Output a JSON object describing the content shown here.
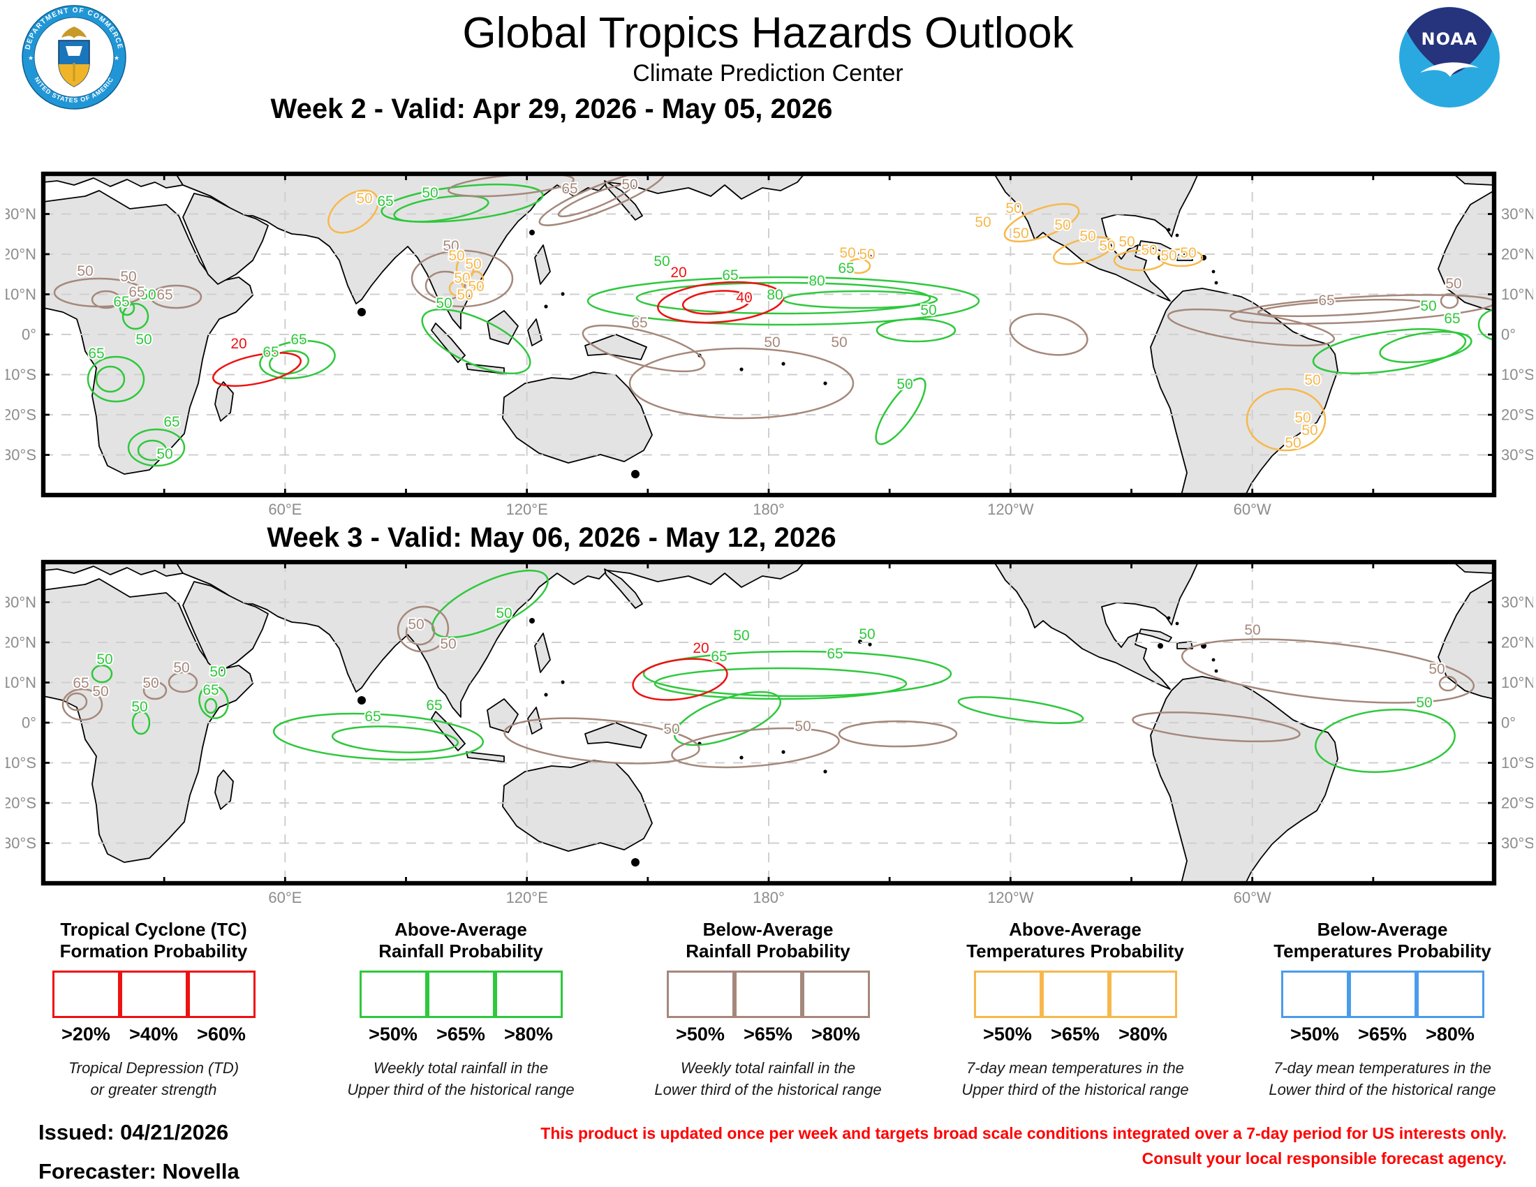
{
  "palette": {
    "green": "#2ec83c",
    "brown": "#a5887b",
    "red": "#ee1111",
    "orange": "#f7b84b",
    "blue": "#4a9ceb",
    "grid": "#cfcfcf",
    "axis_text": "#8c8c8c",
    "land": "#e3e3e3",
    "land_border": "#000000",
    "noaa_dark": "#26337d",
    "noaa_light": "#2aa9e0",
    "seal_ring": "#2196d6",
    "disclaimer_red": "#ff0000"
  },
  "header": {
    "title": "Global Tropics Hazards Outlook",
    "subtitle": "Climate Prediction Center",
    "seal_top_text": "DEPARTMENT OF COMMERCE",
    "seal_bottom_text": "UNITED STATES OF AMERICA",
    "noaa_text": "NOAA"
  },
  "maps": [
    {
      "title": "Week 2 - Valid: Apr 29, 2026 - May 05, 2026",
      "lat_labels": [
        "30°N",
        "20°N",
        "10°N",
        "0°",
        "10°S",
        "20°S",
        "30°S"
      ],
      "lon_labels": [
        "60°E",
        "120°E",
        "180°",
        "120°W",
        "60°W"
      ],
      "contours": [
        [
          "green",
          52,
          147,
          20,
          16,
          0
        ],
        [
          "green",
          48,
          147,
          10,
          9,
          0
        ],
        [
          "green",
          81,
          196,
          20,
          13,
          0
        ],
        [
          "green",
          78,
          198,
          10,
          7,
          0
        ],
        [
          "green",
          66,
          102,
          9,
          9,
          0
        ],
        [
          "green",
          60,
          96,
          5,
          5,
          0
        ],
        [
          "green",
          182,
          133,
          27,
          13,
          -8
        ],
        [
          "green",
          176,
          135,
          14,
          8,
          -8
        ],
        [
          "green",
          310,
          120,
          42,
          16,
          25
        ],
        [
          "green",
          300,
          21,
          58,
          12,
          -6
        ],
        [
          "green",
          285,
          25,
          34,
          8,
          -8
        ],
        [
          "green",
          530,
          91,
          140,
          17,
          0
        ],
        [
          "green",
          530,
          89,
          105,
          11,
          0
        ],
        [
          "green",
          585,
          90,
          55,
          6,
          0
        ],
        [
          "green",
          625,
          112,
          28,
          8,
          0
        ],
        [
          "green",
          614,
          170,
          28,
          9,
          -55
        ],
        [
          "green",
          964,
          127,
          55,
          14,
          -8
        ],
        [
          "green",
          990,
          124,
          33,
          10,
          -8
        ],
        [
          "green",
          1042,
          108,
          14,
          11,
          0
        ],
        [
          "brown",
          40,
          85,
          32,
          10,
          0
        ],
        [
          "brown",
          45,
          90,
          10,
          6,
          0
        ],
        [
          "brown",
          95,
          88,
          18,
          8,
          0
        ],
        [
          "brown",
          300,
          75,
          36,
          20,
          0
        ],
        [
          "brown",
          288,
          80,
          14,
          10,
          0
        ],
        [
          "brown",
          335,
          8,
          45,
          7,
          -5
        ],
        [
          "brown",
          400,
          17,
          48,
          9,
          -22
        ],
        [
          "brown",
          395,
          19,
          28,
          5,
          -22
        ],
        [
          "brown",
          430,
          125,
          45,
          12,
          15
        ],
        [
          "brown",
          500,
          150,
          80,
          25,
          0
        ],
        [
          "brown",
          720,
          115,
          28,
          14,
          10
        ],
        [
          "brown",
          945,
          97,
          95,
          9,
          -3
        ],
        [
          "brown",
          930,
          96,
          60,
          5,
          -3
        ],
        [
          "brown",
          865,
          110,
          60,
          10,
          8
        ],
        [
          "brown",
          1007,
          91,
          6,
          5,
          0
        ],
        [
          "red",
          485,
          92,
          45,
          14,
          -5
        ],
        [
          "red",
          482,
          92,
          24,
          8,
          -5
        ],
        [
          "red",
          153,
          140,
          32,
          10,
          -12
        ],
        [
          "orange",
          222,
          27,
          20,
          12,
          -35
        ],
        [
          "orange",
          302,
          68,
          6,
          8,
          0
        ],
        [
          "orange",
          310,
          76,
          5,
          6,
          0
        ],
        [
          "orange",
          296,
          82,
          5,
          5,
          0
        ],
        [
          "orange",
          715,
          35,
          28,
          10,
          -20
        ],
        [
          "orange",
          745,
          55,
          22,
          8,
          -15
        ],
        [
          "orange",
          785,
          62,
          18,
          7,
          0
        ],
        [
          "orange",
          815,
          60,
          15,
          6,
          0
        ],
        [
          "orange",
          584,
          66,
          8,
          5,
          0
        ],
        [
          "orange",
          890,
          176,
          28,
          22,
          0
        ]
      ],
      "labels": [
        [
          "green",
          "50",
          72,
          122
        ],
        [
          "green",
          "65",
          38,
          132
        ],
        [
          "green",
          "65",
          92,
          181
        ],
        [
          "green",
          "50",
          87,
          204
        ],
        [
          "green",
          "50",
          75,
          90
        ],
        [
          "green",
          "65",
          56,
          95
        ],
        [
          "green",
          "65",
          183,
          122
        ],
        [
          "green",
          "65",
          163,
          131
        ],
        [
          "green",
          "50",
          287,
          96
        ],
        [
          "green",
          "65",
          245,
          23
        ],
        [
          "green",
          "50",
          277,
          17
        ],
        [
          "green",
          "50",
          443,
          66
        ],
        [
          "green",
          "65",
          492,
          76
        ],
        [
          "green",
          "80",
          524,
          90
        ],
        [
          "green",
          "80",
          554,
          80
        ],
        [
          "green",
          "65",
          575,
          71
        ],
        [
          "green",
          "50",
          634,
          101
        ],
        [
          "green",
          "50",
          617,
          154
        ],
        [
          "green",
          "50",
          992,
          98
        ],
        [
          "green",
          "65",
          1009,
          107
        ],
        [
          "brown",
          "50",
          30,
          73
        ],
        [
          "brown",
          "50",
          61,
          77
        ],
        [
          "brown",
          "65",
          67,
          88
        ],
        [
          "brown",
          "65",
          87,
          90
        ],
        [
          "brown",
          "50",
          292,
          55
        ],
        [
          "brown",
          "65",
          377,
          14
        ],
        [
          "brown",
          "50",
          420,
          11
        ],
        [
          "brown",
          "65",
          427,
          110
        ],
        [
          "brown",
          "50",
          522,
          124
        ],
        [
          "brown",
          "50",
          570,
          124
        ],
        [
          "brown",
          "65",
          919,
          94
        ],
        [
          "brown",
          "50",
          1010,
          82
        ],
        [
          "red",
          "20",
          455,
          74
        ],
        [
          "red",
          "40",
          502,
          92
        ],
        [
          "red",
          "20",
          140,
          125
        ],
        [
          "orange",
          "50",
          230,
          21
        ],
        [
          "orange",
          "50",
          296,
          62
        ],
        [
          "orange",
          "50",
          308,
          68
        ],
        [
          "orange",
          "50",
          300,
          78
        ],
        [
          "orange",
          "50",
          310,
          84
        ],
        [
          "orange",
          "50",
          302,
          90
        ],
        [
          "orange",
          "50",
          695,
          28
        ],
        [
          "orange",
          "50",
          673,
          38
        ],
        [
          "orange",
          "50",
          700,
          46
        ],
        [
          "orange",
          "50",
          730,
          40
        ],
        [
          "orange",
          "50",
          748,
          48
        ],
        [
          "orange",
          "50",
          762,
          55
        ],
        [
          "orange",
          "50",
          776,
          52
        ],
        [
          "orange",
          "50",
          792,
          58
        ],
        [
          "orange",
          "50",
          806,
          62
        ],
        [
          "orange",
          "50",
          820,
          60
        ],
        [
          "orange",
          "50",
          576,
          60
        ],
        [
          "orange",
          "50",
          590,
          61
        ],
        [
          "orange",
          "50",
          909,
          151
        ],
        [
          "orange",
          "50",
          902,
          178
        ],
        [
          "orange",
          "50",
          907,
          187
        ],
        [
          "orange",
          "50",
          895,
          196
        ]
      ]
    },
    {
      "title": "Week 3 - Valid: May 06, 2026 - May 12, 2026",
      "lat_labels": [
        "30°N",
        "20°N",
        "10°N",
        "0°",
        "10°S",
        "20°S",
        "30°S"
      ],
      "lon_labels": [
        "60°E",
        "120°E",
        "180°",
        "120°W",
        "60°W"
      ],
      "contours": [
        [
          "green",
          42,
          80,
          7,
          6,
          0
        ],
        [
          "green",
          70,
          115,
          6,
          8,
          0
        ],
        [
          "green",
          122,
          100,
          10,
          12,
          -20
        ],
        [
          "green",
          120,
          103,
          4,
          5,
          0
        ],
        [
          "green",
          240,
          125,
          75,
          16,
          3
        ],
        [
          "green",
          252,
          127,
          45,
          9,
          3
        ],
        [
          "green",
          320,
          30,
          45,
          16,
          -25
        ],
        [
          "green",
          540,
          80,
          110,
          16,
          0
        ],
        [
          "green",
          528,
          87,
          90,
          11,
          0
        ],
        [
          "green",
          490,
          112,
          40,
          14,
          -20
        ],
        [
          "green",
          700,
          106,
          45,
          7,
          8
        ],
        [
          "green",
          961,
          128,
          50,
          22,
          -5
        ],
        [
          "brown",
          28,
          102,
          14,
          11,
          0
        ],
        [
          "brown",
          24,
          100,
          7,
          6,
          0
        ],
        [
          "brown",
          80,
          92,
          8,
          6,
          0
        ],
        [
          "brown",
          100,
          86,
          10,
          7,
          0
        ],
        [
          "brown",
          272,
          48,
          18,
          16,
          -10
        ],
        [
          "brown",
          270,
          50,
          10,
          9,
          -10
        ],
        [
          "brown",
          400,
          128,
          70,
          15,
          5
        ],
        [
          "brown",
          612,
          123,
          42,
          9,
          0
        ],
        [
          "brown",
          510,
          133,
          60,
          13,
          -5
        ],
        [
          "brown",
          920,
          78,
          105,
          20,
          6
        ],
        [
          "brown",
          1006,
          87,
          6,
          5,
          0
        ],
        [
          "brown",
          840,
          118,
          60,
          9,
          5
        ],
        [
          "red",
          456,
          84,
          34,
          14,
          -8
        ]
      ],
      "labels": [
        [
          "green",
          "50",
          44,
          73
        ],
        [
          "green",
          "50",
          69,
          107
        ],
        [
          "green",
          "50",
          125,
          82
        ],
        [
          "green",
          "65",
          120,
          95
        ],
        [
          "green",
          "65",
          236,
          114
        ],
        [
          "green",
          "65",
          280,
          106
        ],
        [
          "green",
          "50",
          330,
          40
        ],
        [
          "green",
          "50",
          500,
          56
        ],
        [
          "green",
          "50",
          590,
          55
        ],
        [
          "green",
          "65",
          484,
          71
        ],
        [
          "green",
          "65",
          567,
          69
        ],
        [
          "green",
          "50",
          989,
          104
        ],
        [
          "brown",
          "65",
          27,
          90
        ],
        [
          "brown",
          "50",
          41,
          96
        ],
        [
          "brown",
          "50",
          77,
          90
        ],
        [
          "brown",
          "50",
          99,
          79
        ],
        [
          "brown",
          "50",
          267,
          48
        ],
        [
          "brown",
          "50",
          290,
          62
        ],
        [
          "brown",
          "50",
          450,
          123
        ],
        [
          "brown",
          "50",
          544,
          121
        ],
        [
          "brown",
          "50",
          866,
          52
        ],
        [
          "brown",
          "50",
          998,
          80
        ],
        [
          "red",
          "20",
          471,
          65
        ]
      ]
    }
  ],
  "legend": {
    "groups": [
      {
        "title_line1": "Tropical Cyclone (TC)",
        "title_line2": "Formation Probability",
        "color_key": "red",
        "thresholds": [
          ">20%",
          ">40%",
          ">60%"
        ],
        "desc_line1": "Tropical Depression (TD)",
        "desc_line2": "or greater strength"
      },
      {
        "title_line1": "Above-Average",
        "title_line2": "Rainfall Probability",
        "color_key": "green",
        "thresholds": [
          ">50%",
          ">65%",
          ">80%"
        ],
        "desc_line1": "Weekly total rainfall in the",
        "desc_line2": "Upper third of the historical range"
      },
      {
        "title_line1": "Below-Average",
        "title_line2": "Rainfall Probability",
        "color_key": "brown",
        "thresholds": [
          ">50%",
          ">65%",
          ">80%"
        ],
        "desc_line1": "Weekly total rainfall in the",
        "desc_line2": "Lower third of the historical range"
      },
      {
        "title_line1": "Above-Average",
        "title_line2": "Temperatures Probability",
        "color_key": "orange",
        "thresholds": [
          ">50%",
          ">65%",
          ">80%"
        ],
        "desc_line1": "7-day mean temperatures in the",
        "desc_line2": "Upper third of the historical range"
      },
      {
        "title_line1": "Below-Average",
        "title_line2": "Temperatures Probability",
        "color_key": "blue",
        "thresholds": [
          ">50%",
          ">65%",
          ">80%"
        ],
        "desc_line1": "7-day mean temperatures in the",
        "desc_line2": "Lower third of the historical range"
      }
    ]
  },
  "footer": {
    "issued": "Issued: 04/21/2026",
    "forecaster": "Forecaster: Novella",
    "disclaimer_line1": "This product is updated once per week and targets broad scale conditions integrated over a 7-day period for US interests only.",
    "disclaimer_line2": "Consult your local responsible forecast agency."
  }
}
